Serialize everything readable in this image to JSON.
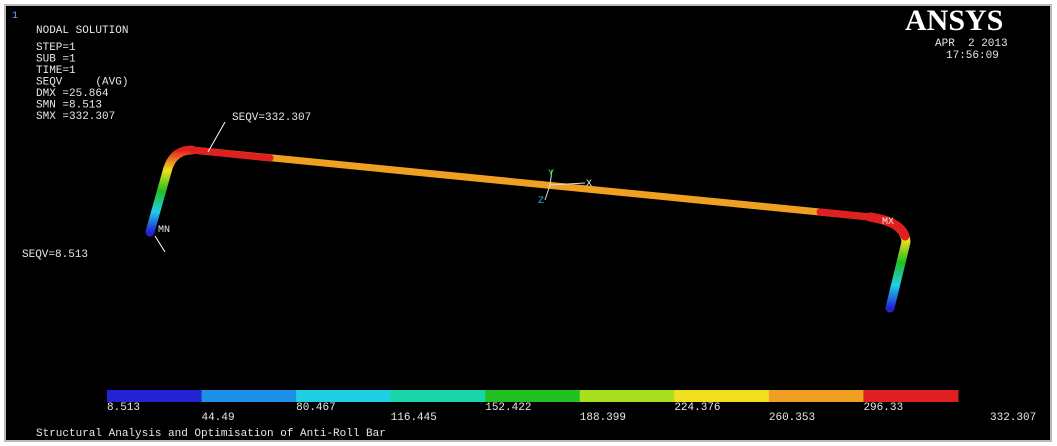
{
  "header": {
    "index": "1",
    "title": "NODAL SOLUTION",
    "lines": [
      "STEP=1",
      "SUB =1",
      "TIME=1",
      "SEQV     (AVG)",
      "DMX =25.864",
      "SMN =8.513",
      "SMX =332.307"
    ]
  },
  "logo": "ANSYS",
  "date": "APR  2 2013",
  "time": "17:56:09",
  "annotations": {
    "max": "SEQV=332.307",
    "min": "SEQV=8.513",
    "mn": "MN",
    "mx": "MX",
    "axis_x": "X",
    "axis_y": "Y",
    "axis_z": "Z"
  },
  "legend": {
    "colors": [
      "#2323d4",
      "#1c8fe6",
      "#1ecfe8",
      "#18d6a8",
      "#20c020",
      "#a8e020",
      "#f0e020",
      "#f0a020",
      "#e02020"
    ],
    "labels": [
      8.513,
      44.49,
      80.467,
      116.445,
      152.422,
      188.399,
      224.376,
      260.353,
      296.33,
      332.307
    ]
  },
  "footer": "Structural Analysis and Optimisation of Anti-Roll Bar"
}
